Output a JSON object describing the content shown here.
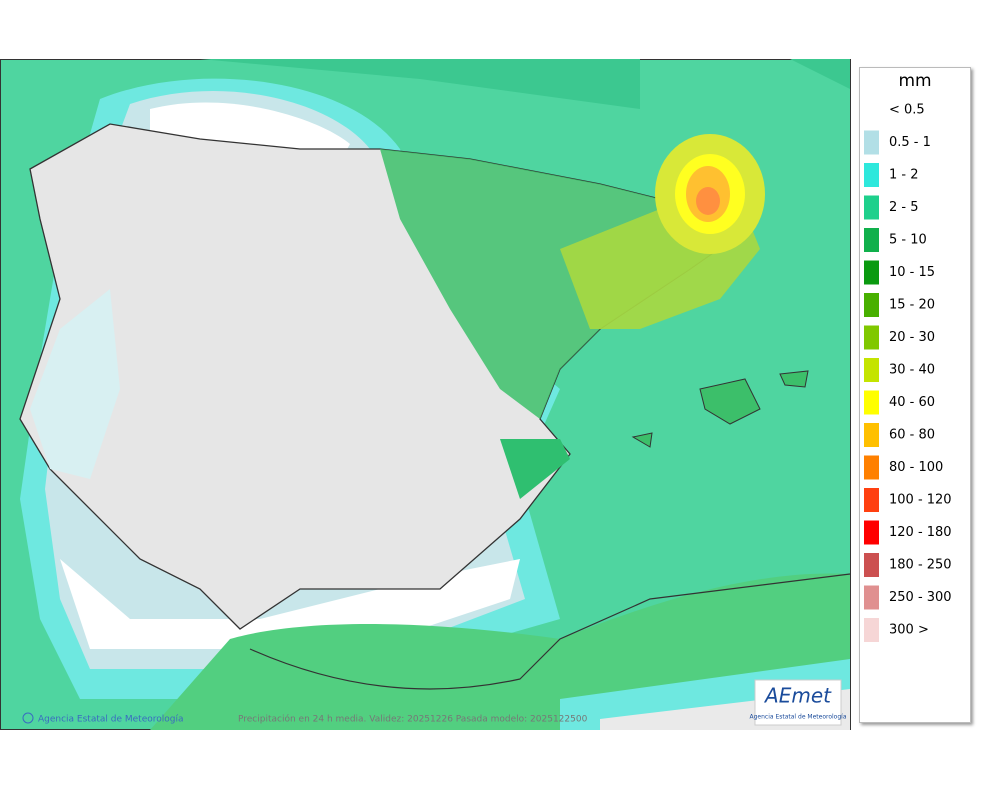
{
  "map": {
    "footer_credit": "Agencia Estatal de Meteorología",
    "footer_info": "Precipitación en 24 h media. Validez: 20251226 Pasada modelo: 2025122500",
    "logo": {
      "title": "AEmet",
      "subtitle": "Agencia Estatal de Meteorología"
    }
  },
  "legend": {
    "unit": "mm",
    "items": [
      {
        "label": "< 0.5",
        "color": "#ffffff"
      },
      {
        "label": "0.5 - 1",
        "color": "#b2dfe6"
      },
      {
        "label": "1 - 2",
        "color": "#2ee8dc"
      },
      {
        "label": "2 - 5",
        "color": "#1ed08c"
      },
      {
        "label": "5 - 10",
        "color": "#10b04c"
      },
      {
        "label": "10 - 15",
        "color": "#0a9a10"
      },
      {
        "label": "15 - 20",
        "color": "#48b000"
      },
      {
        "label": "20 - 30",
        "color": "#80c800"
      },
      {
        "label": "30 - 40",
        "color": "#c4e400"
      },
      {
        "label": "40 - 60",
        "color": "#ffff00"
      },
      {
        "label": "60 - 80",
        "color": "#ffc000"
      },
      {
        "label": "80 - 100",
        "color": "#ff8000"
      },
      {
        "label": "100 - 120",
        "color": "#ff4010"
      },
      {
        "label": "120 - 180",
        "color": "#ff0000"
      },
      {
        "label": "180 - 250",
        "color": "#cc5050"
      },
      {
        "label": "250 - 300",
        "color": "#e09090"
      },
      {
        "label": "300 >",
        "color": "#f6d6d6"
      }
    ]
  }
}
